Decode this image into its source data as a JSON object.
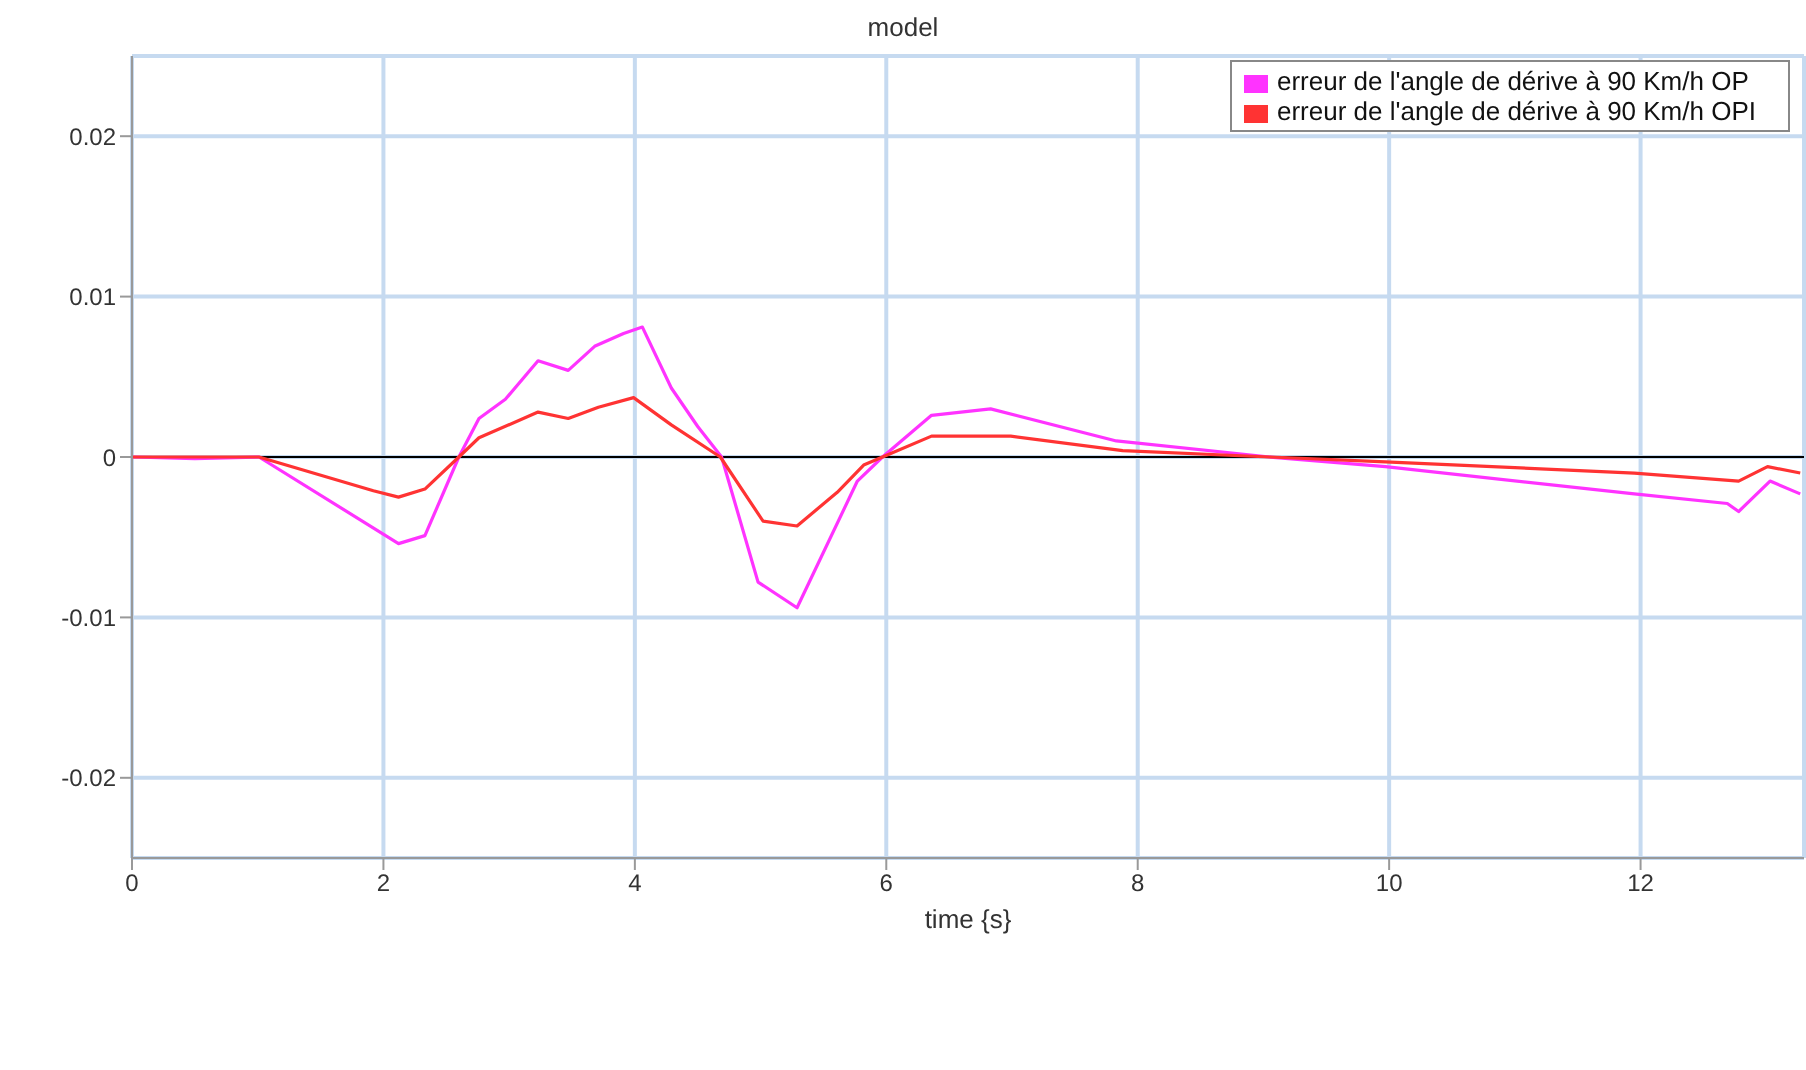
{
  "chart_data": {
    "type": "line",
    "title": "model",
    "xlabel": "time {s}",
    "xlim": [
      0,
      13.3
    ],
    "xticks": [
      0,
      2,
      4,
      6,
      8,
      10,
      12
    ],
    "ylim": [
      -0.025,
      0.025
    ],
    "yticks": [
      -0.02,
      -0.01,
      0,
      0.01,
      0.02
    ],
    "grid": true,
    "legend": "top right",
    "marker": "none",
    "line_style": "solid",
    "ref_lines": [
      {
        "axis": "y",
        "value": 0,
        "color": "#000000"
      }
    ],
    "series": [
      {
        "name": "erreur de l'angle de dérive à 90 Km/h OP",
        "color": "#ff33ff",
        "x": [
          0,
          0.5,
          1.01,
          2.12,
          2.33,
          2.6,
          2.76,
          2.97,
          3.23,
          3.47,
          3.68,
          3.91,
          4.06,
          4.29,
          4.5,
          4.69,
          4.98,
          5.29,
          5.77,
          5.97,
          6.36,
          6.83,
          7.83,
          9.05,
          9.97,
          11.95,
          12.69,
          12.78,
          13.03,
          13.27
        ],
        "values": [
          0,
          -0.0001,
          0,
          -0.0054,
          -0.0049,
          0,
          0.0024,
          0.0036,
          0.006,
          0.0054,
          0.0069,
          0.0077,
          0.0081,
          0.0043,
          0.0019,
          0,
          -0.0078,
          -0.0094,
          -0.0015,
          0,
          0.0026,
          0.003,
          0.001,
          0,
          -0.0006,
          -0.0023,
          -0.0029,
          -0.0034,
          -0.0015,
          -0.0023
        ]
      },
      {
        "name": "erreur de l'angle de dérive à 90 Km/h OPI",
        "color": "#ff3333",
        "x": [
          0,
          1.01,
          1.92,
          2.12,
          2.33,
          2.6,
          2.76,
          3.23,
          3.47,
          3.71,
          3.99,
          4.29,
          4.68,
          5.02,
          5.29,
          5.61,
          5.82,
          5.97,
          6.36,
          6.99,
          7.88,
          9.05,
          9.97,
          11.95,
          12.78,
          13.01,
          13.27
        ],
        "values": [
          0,
          0,
          -0.0021,
          -0.0025,
          -0.002,
          0,
          0.0012,
          0.0028,
          0.0024,
          0.0031,
          0.0037,
          0.002,
          0,
          -0.004,
          -0.0043,
          -0.0022,
          -0.0005,
          0,
          0.0013,
          0.0013,
          0.0004,
          0,
          -0.0003,
          -0.001,
          -0.0015,
          -0.0006,
          -0.001
        ]
      }
    ]
  }
}
